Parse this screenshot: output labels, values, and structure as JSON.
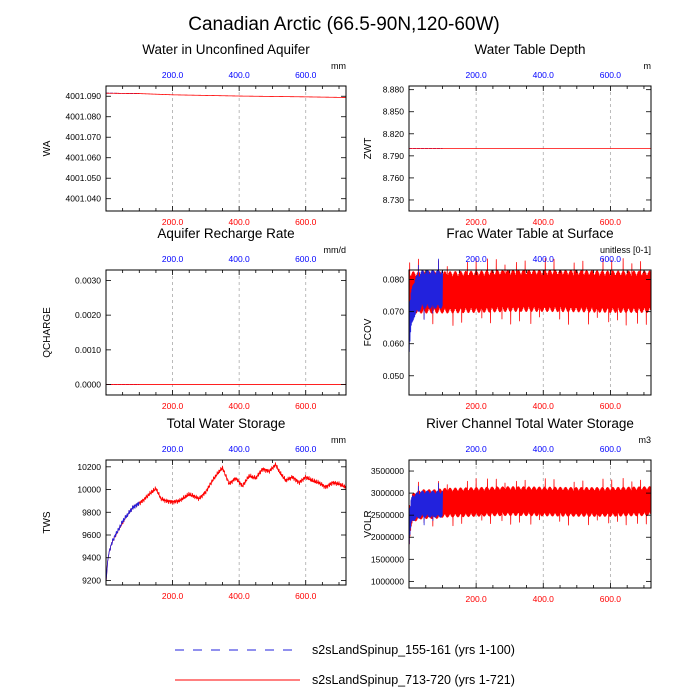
{
  "figure": {
    "title": "Canadian Arctic (66.5-90N,120-60W)",
    "top_axis_color": "#0000ff",
    "bottom_axis_color": "#ff0000",
    "legend": [
      {
        "label": "s2sLandSpinup_155-161 (yrs 1-100)",
        "color": "#2222dd",
        "style": "dashed"
      },
      {
        "label": "s2sLandSpinup_713-720 (yrs 1-721)",
        "color": "#ff0000",
        "style": "solid"
      }
    ]
  },
  "chart_data": [
    {
      "type": "line",
      "title": "Water in Unconfined Aquifer",
      "ylabel": "WA",
      "units": "mm",
      "xlim_bottom": [
        0,
        721
      ],
      "xticks_bottom": [
        200,
        400,
        600
      ],
      "xticklabels_bottom": [
        "200.0",
        "400.0",
        "600.0"
      ],
      "xlim_top": [
        0,
        721
      ],
      "xticks_top": [
        200,
        400,
        600
      ],
      "xticklabels_top": [
        "200.0",
        "400.0",
        "600.0"
      ],
      "ylim": [
        4001.034,
        4001.095
      ],
      "yticks": [
        4001.04,
        4001.05,
        4001.06,
        4001.07,
        4001.08,
        4001.09
      ],
      "yticklabels": [
        "4001.040",
        "4001.050",
        "4001.060",
        "4001.070",
        "4001.080",
        "4001.090"
      ],
      "series": [
        {
          "name": "s2sLandSpinup_155-161 (yrs 1-100)",
          "color": "#2222dd",
          "x": [
            0,
            20,
            40,
            60,
            80,
            100
          ],
          "y": [
            4001.0915,
            4001.0915,
            4001.0914,
            4001.0914,
            4001.0913,
            4001.0913
          ]
        },
        {
          "name": "s2sLandSpinup_713-720 (yrs 1-721)",
          "color": "#ff0000",
          "x": [
            0,
            100,
            200,
            300,
            400,
            500,
            600,
            721
          ],
          "y": [
            4001.0915,
            4001.0913,
            4001.0907,
            4001.0904,
            4001.0901,
            4001.0899,
            4001.0897,
            4001.0894
          ]
        }
      ]
    },
    {
      "type": "line",
      "title": "Water Table Depth",
      "ylabel": "ZWT",
      "units": "m",
      "xlim_bottom": [
        0,
        721
      ],
      "xticks_bottom": [
        200,
        400,
        600
      ],
      "xticklabels_bottom": [
        "200.0",
        "400.0",
        "600.0"
      ],
      "xlim_top": [
        0,
        721
      ],
      "xticks_top": [
        200,
        400,
        600
      ],
      "xticklabels_top": [
        "200.0",
        "400.0",
        "600.0"
      ],
      "ylim": [
        8.715,
        8.885
      ],
      "yticks": [
        8.73,
        8.76,
        8.79,
        8.82,
        8.85,
        8.88
      ],
      "yticklabels": [
        "8.730",
        "8.760",
        "8.790",
        "8.820",
        "8.850",
        "8.880"
      ],
      "series": [
        {
          "name": "s2sLandSpinup_155-161 (yrs 1-100)",
          "color": "#2222dd",
          "x": [
            0,
            100
          ],
          "y": [
            8.8,
            8.8
          ]
        },
        {
          "name": "s2sLandSpinup_713-720 (yrs 1-721)",
          "color": "#ff0000",
          "x": [
            0,
            721
          ],
          "y": [
            8.8,
            8.8
          ]
        }
      ]
    },
    {
      "type": "line",
      "title": "Aquifer Recharge Rate",
      "ylabel": "QCHARGE",
      "units": "mm/d",
      "xlim_bottom": [
        0,
        721
      ],
      "xticks_bottom": [
        200,
        400,
        600
      ],
      "xticklabels_bottom": [
        "200.0",
        "400.0",
        "600.0"
      ],
      "xlim_top": [
        0,
        721
      ],
      "xticks_top": [
        200,
        400,
        600
      ],
      "xticklabels_top": [
        "200.0",
        "400.0",
        "600.0"
      ],
      "ylim": [
        -0.0003,
        0.0033
      ],
      "yticks": [
        0,
        0.001,
        0.002,
        0.003
      ],
      "yticklabels": [
        "0.0000",
        "0.0010",
        "0.0020",
        "0.0030"
      ],
      "series": [
        {
          "name": "s2sLandSpinup_155-161 (yrs 1-100)",
          "color": "#2222dd",
          "x": [
            0,
            100
          ],
          "y": [
            0,
            0
          ]
        },
        {
          "name": "s2sLandSpinup_713-720 (yrs 1-721)",
          "color": "#ff0000",
          "x": [
            0,
            721
          ],
          "y": [
            0,
            0
          ]
        }
      ]
    },
    {
      "type": "line",
      "title": "Frac Water Table at Surface",
      "ylabel": "FCOV",
      "units": "unitless [0-1]",
      "xlim_bottom": [
        0,
        721
      ],
      "xticks_bottom": [
        200,
        400,
        600
      ],
      "xticklabels_bottom": [
        "200.0",
        "400.0",
        "600.0"
      ],
      "xlim_top": [
        0,
        721
      ],
      "xticks_top": [
        200,
        400,
        600
      ],
      "xticklabels_top": [
        "200.0",
        "400.0",
        "600.0"
      ],
      "ylim": [
        0.044,
        0.083
      ],
      "yticks": [
        0.05,
        0.06,
        0.07,
        0.08
      ],
      "yticklabels": [
        "0.050",
        "0.060",
        "0.070",
        "0.080"
      ],
      "series": [
        {
          "name": "s2sLandSpinup_155-161 (yrs 1-100)",
          "color": "#2222dd",
          "x": [
            0,
            2,
            4,
            6,
            10,
            15,
            20,
            30,
            40,
            60,
            80,
            100
          ],
          "y": [
            0.062,
            0.065,
            0.068,
            0.07,
            0.072,
            0.074,
            0.075,
            0.076,
            0.077,
            0.077,
            0.077,
            0.077
          ],
          "seasonal_amplitude": 0.006,
          "period": 2
        },
        {
          "name": "s2sLandSpinup_713-720 (yrs 1-721)",
          "color": "#ff0000",
          "x": [
            0,
            50,
            100,
            200,
            300,
            400,
            500,
            600,
            721
          ],
          "y": [
            0.076,
            0.076,
            0.076,
            0.0762,
            0.0765,
            0.0765,
            0.0764,
            0.0762,
            0.0762
          ],
          "seasonal_amplitude": 0.0065,
          "period": 2
        }
      ]
    },
    {
      "type": "line",
      "title": "Total Water Storage",
      "ylabel": "TWS",
      "units": "mm",
      "xlim_bottom": [
        0,
        721
      ],
      "xticks_bottom": [
        200,
        400,
        600
      ],
      "xticklabels_bottom": [
        "200.0",
        "400.0",
        "600.0"
      ],
      "xlim_top": [
        0,
        721
      ],
      "xticks_top": [
        200,
        400,
        600
      ],
      "xticklabels_top": [
        "200.0",
        "400.0",
        "600.0"
      ],
      "ylim": [
        9160,
        10260
      ],
      "yticks": [
        9200,
        9400,
        9600,
        9800,
        10000,
        10200
      ],
      "yticklabels": [
        "9200",
        "9400",
        "9600",
        "9800",
        "10000",
        "10200"
      ],
      "series": [
        {
          "name": "s2sLandSpinup_155-161 (yrs 1-100)",
          "color": "#2222dd",
          "x": [
            0,
            5,
            10,
            20,
            30,
            40,
            50,
            60,
            70,
            80,
            90,
            100
          ],
          "y": [
            9180,
            9370,
            9460,
            9550,
            9610,
            9660,
            9720,
            9760,
            9800,
            9840,
            9860,
            9880
          ]
        },
        {
          "name": "s2sLandSpinup_713-720 (yrs 1-721)",
          "color": "#ff0000",
          "x": [
            0,
            5,
            10,
            20,
            40,
            60,
            80,
            100,
            110,
            130,
            150,
            165,
            180,
            200,
            220,
            250,
            280,
            300,
            320,
            340,
            350,
            370,
            390,
            410,
            430,
            450,
            470,
            490,
            510,
            520,
            540,
            560,
            580,
            600,
            620,
            640,
            660,
            680,
            700,
            721
          ],
          "y": [
            9180,
            9370,
            9460,
            9550,
            9660,
            9760,
            9840,
            9880,
            9900,
            9960,
            10010,
            9920,
            9900,
            9890,
            9900,
            9960,
            9920,
            9980,
            10080,
            10160,
            10190,
            10050,
            10100,
            10030,
            10120,
            10100,
            10180,
            10160,
            10220,
            10160,
            10080,
            10110,
            10060,
            10110,
            10080,
            10060,
            10020,
            10060,
            10050,
            10020
          ]
        }
      ]
    },
    {
      "type": "line",
      "title": "River Channel Total Water Storage",
      "ylabel": "VOLR",
      "units": "m3",
      "xlim_bottom": [
        0,
        721
      ],
      "xticks_bottom": [
        200,
        400,
        600
      ],
      "xticklabels_bottom": [
        "200.0",
        "400.0",
        "600.0"
      ],
      "xlim_top": [
        0,
        721
      ],
      "xticks_top": [
        200,
        400,
        600
      ],
      "xticklabels_top": [
        "200.0",
        "400.0",
        "600.0"
      ],
      "ylim": [
        850000,
        3750000
      ],
      "yticks": [
        1000000,
        1500000,
        2000000,
        2500000,
        3000000,
        3500000
      ],
      "yticklabels": [
        "1000000",
        "1500000",
        "2000000",
        "2500000",
        "3000000",
        "3500000"
      ],
      "series": [
        {
          "name": "s2sLandSpinup_155-161 (yrs 1-100)",
          "color": "#2222dd",
          "x": [
            0,
            3,
            6,
            10,
            20,
            40,
            60,
            80,
            100
          ],
          "y": [
            2050000,
            2350000,
            2550000,
            2650000,
            2700000,
            2750000,
            2750000,
            2750000,
            2750000
          ],
          "seasonal_amplitude": 300000,
          "period": 2
        },
        {
          "name": "s2sLandSpinup_713-720 (yrs 1-721)",
          "color": "#ff0000",
          "x": [
            0,
            3,
            6,
            10,
            20,
            40,
            60,
            80,
            100,
            200,
            300,
            400,
            500,
            600,
            721
          ],
          "y": [
            2050000,
            2350000,
            2550000,
            2650000,
            2700000,
            2750000,
            2750000,
            2750000,
            2780000,
            2800000,
            2820000,
            2810000,
            2800000,
            2800000,
            2820000
          ],
          "seasonal_amplitude": 330000,
          "period": 2
        }
      ]
    }
  ]
}
